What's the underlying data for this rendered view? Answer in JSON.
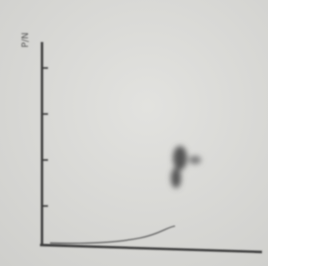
{
  "axis_label": "P/N"
}
